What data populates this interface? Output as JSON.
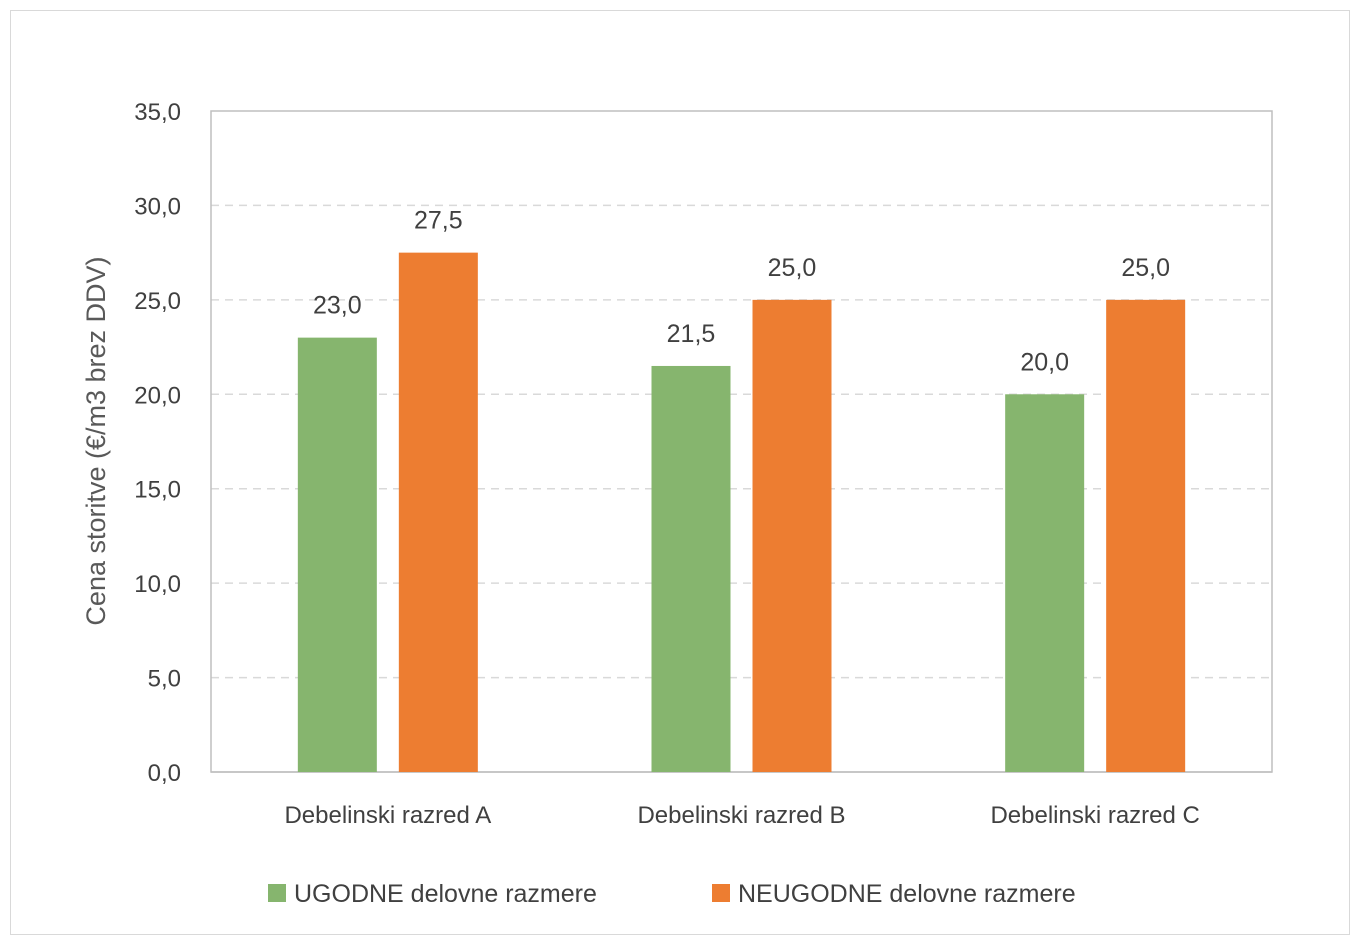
{
  "chart_data": {
    "type": "bar",
    "categories": [
      "Debelinski razred A",
      "Debelinski razred B",
      "Debelinski razred C"
    ],
    "series": [
      {
        "name": "UGODNE delovne razmere",
        "values": [
          23.0,
          21.5,
          20.0
        ],
        "color": "#86b56e"
      },
      {
        "name": "NEUGODNE delovne razmere",
        "values": [
          27.5,
          25.0,
          25.0
        ],
        "color": "#ed7d31"
      }
    ],
    "value_labels": [
      [
        "23,0",
        "21,5",
        "20,0"
      ],
      [
        "27,5",
        "25,0",
        "25,0"
      ]
    ],
    "title": "",
    "xlabel": "",
    "ylabel": "Cena storitve (€/m3 brez DDV)",
    "ylim": [
      0,
      35
    ],
    "yticks": [
      0,
      5,
      10,
      15,
      20,
      25,
      30,
      35
    ],
    "ytick_labels": [
      "0,0",
      "5,0",
      "10,0",
      "15,0",
      "20,0",
      "25,0",
      "30,0",
      "35,0"
    ],
    "grid": "horizontal dashed",
    "legend_position": "bottom"
  },
  "colors": {
    "grid": "#d9d9d9",
    "axis": "#bfbfbf",
    "text": "#404040"
  }
}
